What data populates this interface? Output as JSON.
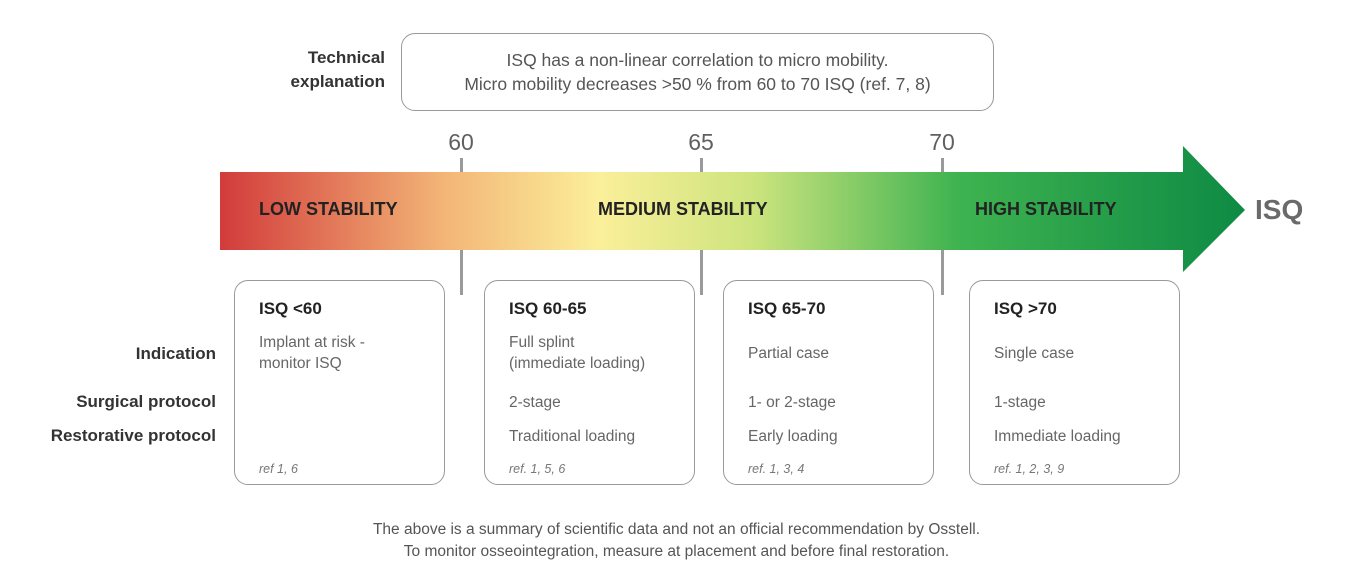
{
  "technical": {
    "label_line1": "Technical",
    "label_line2": "explanation",
    "line1": "ISQ has a non-linear correlation to micro mobility.",
    "line2": "Micro mobility decreases >50 % from 60 to 70 ISQ (ref. 7, 8)"
  },
  "scale": {
    "ticks": [
      "60",
      "65",
      "70"
    ],
    "axis_label": "ISQ",
    "zones": [
      "LOW STABILITY",
      "MEDIUM STABILITY",
      "HIGH STABILITY"
    ],
    "gradient_colors": [
      "#d23b3b",
      "#f3b677",
      "#fbef9a",
      "#cde47e",
      "#3eb350",
      "#0e8a44"
    ]
  },
  "row_labels": {
    "indication": "Indication",
    "surgical": "Surgical protocol",
    "restorative": "Restorative protocol"
  },
  "cards": [
    {
      "title": "ISQ <60",
      "indication_1": "Implant at risk -",
      "indication_2": "monitor ISQ",
      "surgical": "",
      "restorative": "",
      "ref": "ref 1, 6"
    },
    {
      "title": "ISQ 60-65",
      "indication_1": "Full splint",
      "indication_2": "(immediate loading)",
      "surgical": "2-stage",
      "restorative": "Traditional loading",
      "ref": "ref. 1, 5, 6"
    },
    {
      "title": "ISQ 65-70",
      "indication_1": "Partial case",
      "indication_2": "",
      "surgical": "1- or 2-stage",
      "restorative": "Early loading",
      "ref": "ref. 1, 3, 4"
    },
    {
      "title": "ISQ >70",
      "indication_1": "Single case",
      "indication_2": "",
      "surgical": "1-stage",
      "restorative": "Immediate loading",
      "ref": "ref. 1, 2, 3, 9"
    }
  ],
  "footer": {
    "line1": "The above is a summary of scientific data and not an official recommendation by Osstell.",
    "line2": "To monitor osseointegration, measure at placement and before final restoration."
  }
}
